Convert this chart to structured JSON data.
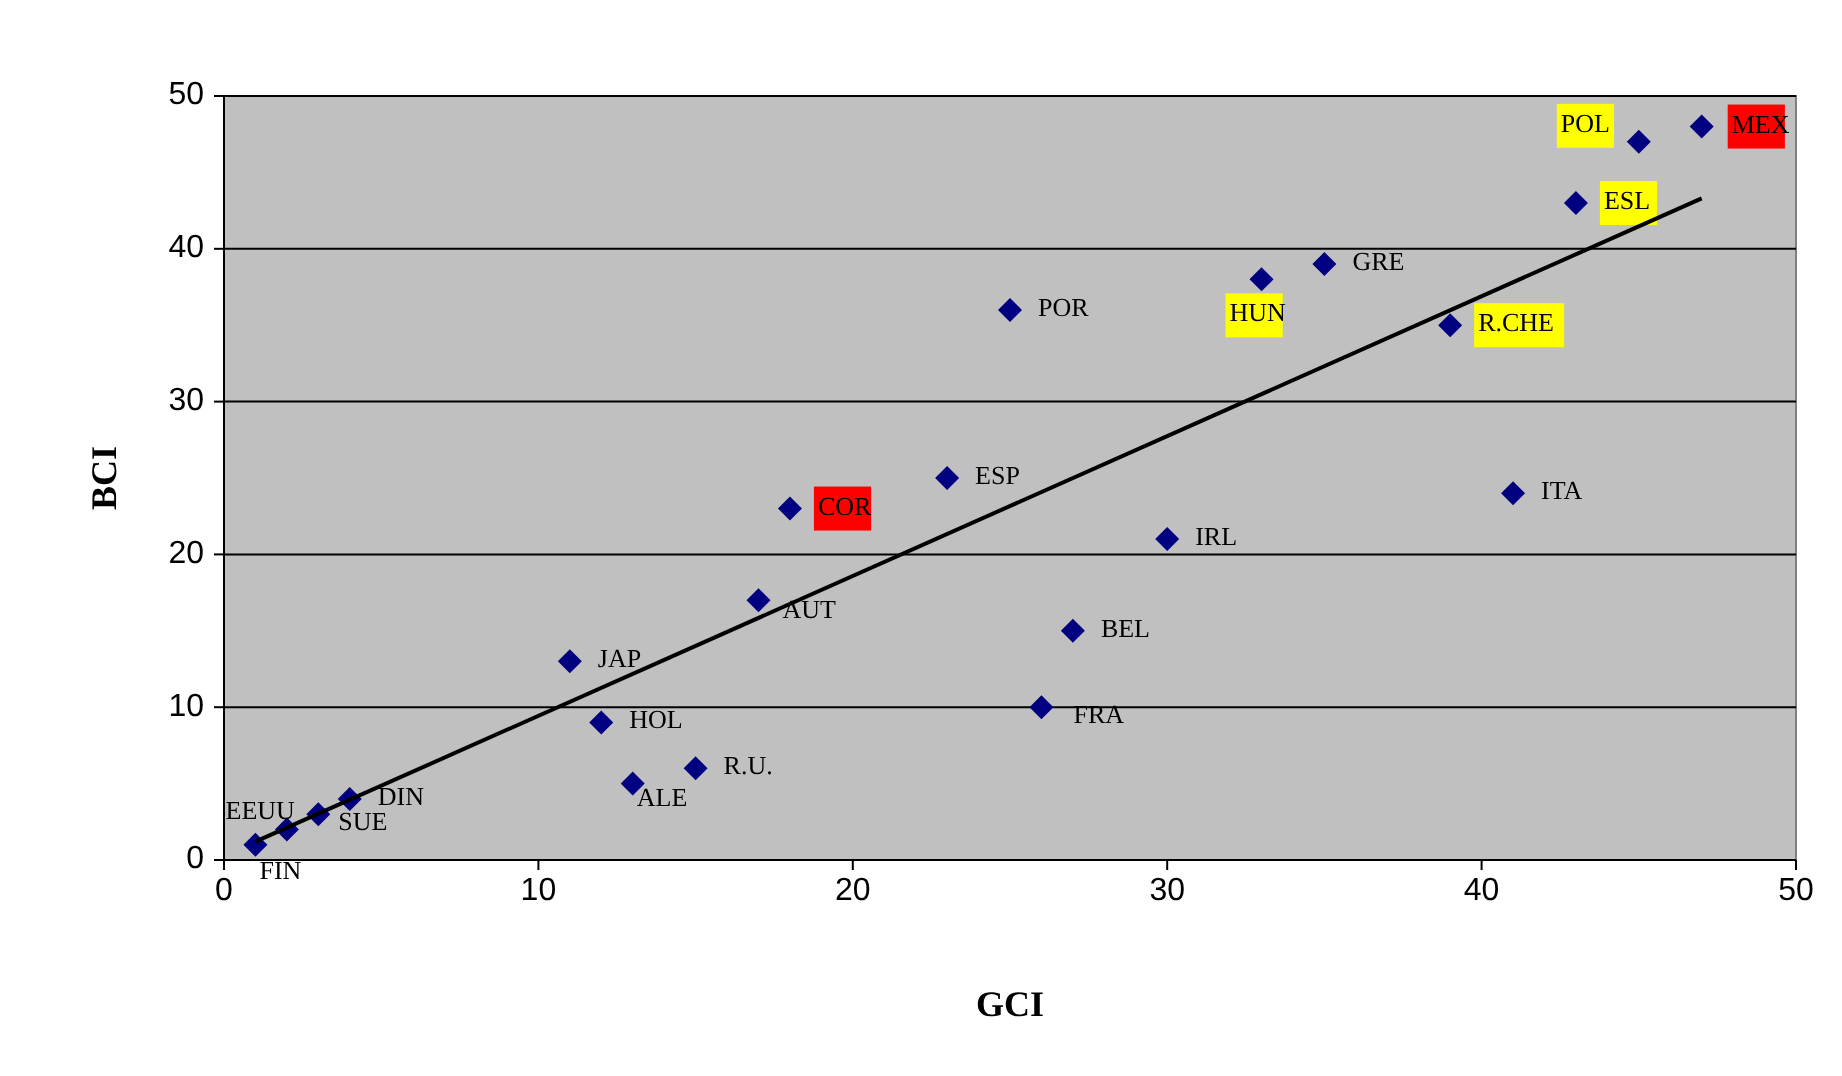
{
  "chart_data": {
    "type": "scatter",
    "xlabel": "GCI",
    "ylabel": "BCI",
    "xlim": [
      0,
      50
    ],
    "ylim": [
      0,
      50
    ],
    "xticks": [
      0,
      10,
      20,
      30,
      40,
      50
    ],
    "yticks": [
      0,
      10,
      20,
      30,
      40,
      50
    ],
    "grid": "y",
    "marker": "diamond",
    "series": [
      {
        "color": "#000080",
        "x": [
          1,
          2,
          3,
          4,
          11,
          12,
          13,
          15,
          17,
          23,
          25,
          26,
          27,
          30,
          35,
          41
        ],
        "values": [
          1,
          2,
          3,
          4,
          13,
          9,
          5,
          6,
          17,
          25,
          36,
          10,
          15,
          21,
          39,
          24
        ],
        "value_labels": [
          "FIN",
          "EEUU",
          "SUE",
          "DIN",
          "JAP",
          "HOL",
          "ALE",
          "R.U.",
          "AUT",
          "ESP",
          "POR",
          "FRA",
          "BEL",
          "IRL",
          "GRE",
          "ITA"
        ]
      },
      {
        "color": "#000080",
        "x": [
          33,
          39,
          43,
          45
        ],
        "values": [
          38,
          35,
          43,
          47
        ],
        "value_labels": [
          "HUN",
          "R.CHE",
          "ESL",
          "POL"
        ]
      },
      {
        "color": "#000080",
        "x": [
          18,
          47
        ],
        "values": [
          23,
          48
        ],
        "value_labels": [
          "COR",
          "MEX"
        ]
      },
      {
        "type": "line",
        "color": "#000000",
        "x": [
          1,
          47
        ],
        "values": [
          1.2,
          43.3
        ],
        "line_style": "solid",
        "marker": "none"
      }
    ]
  }
}
